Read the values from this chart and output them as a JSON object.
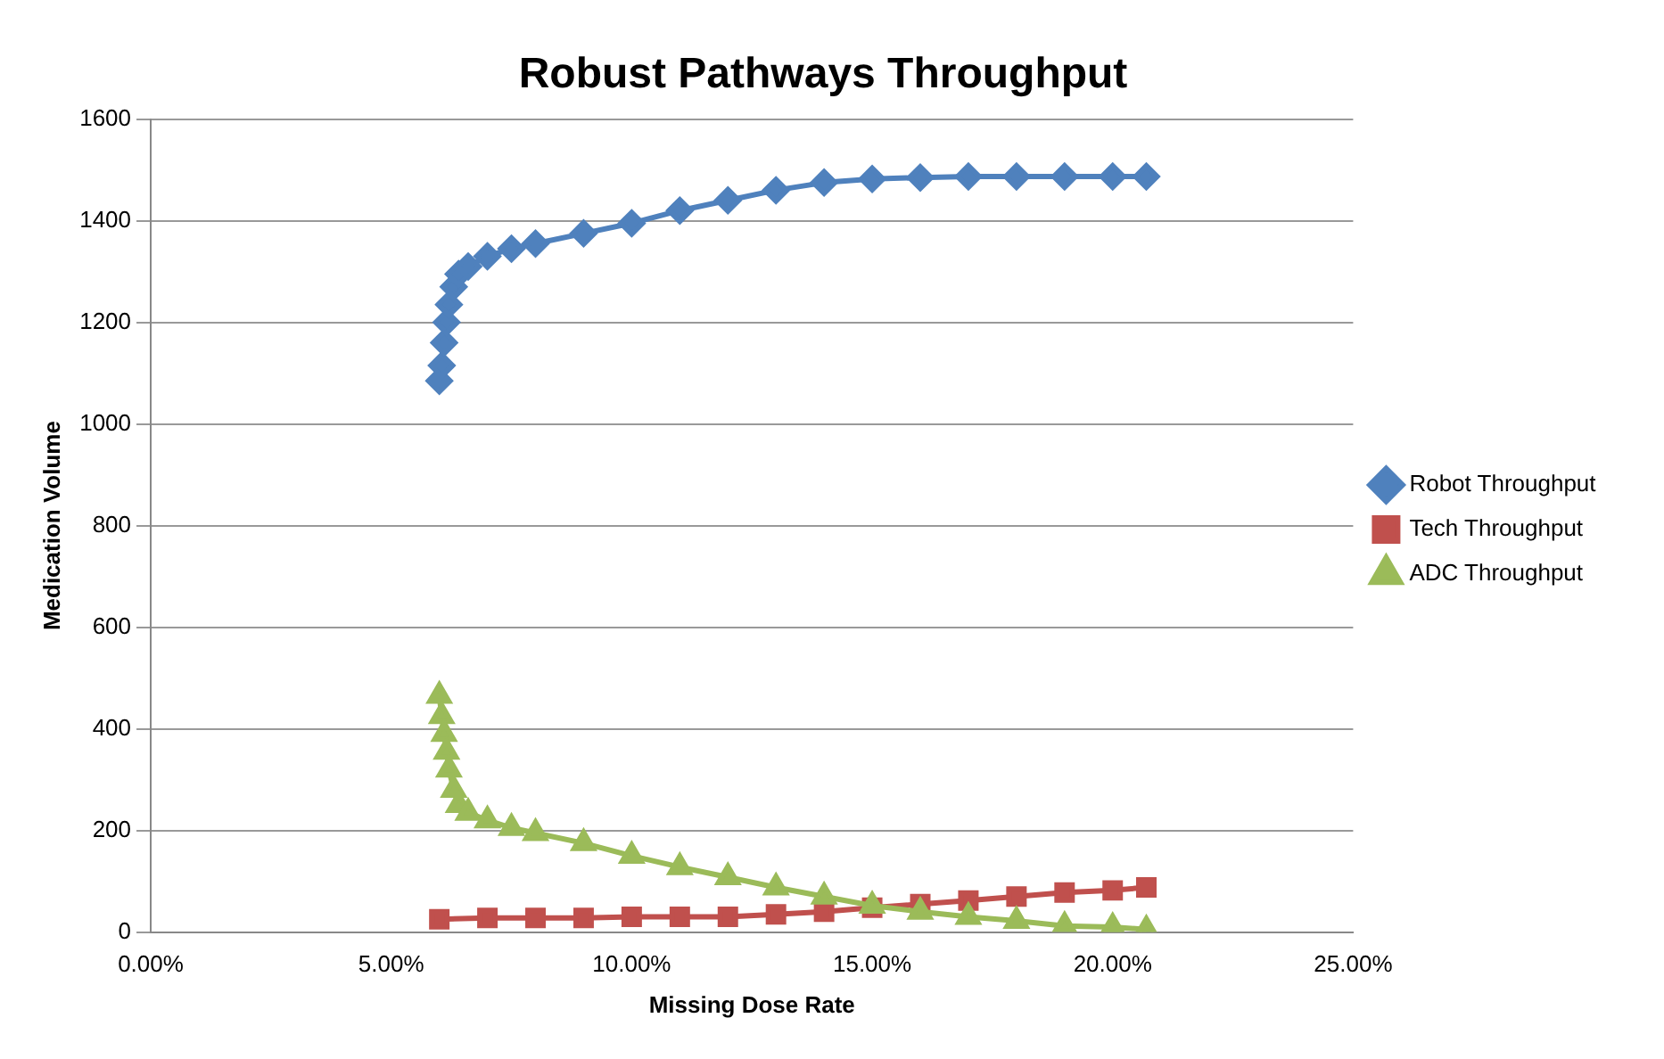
{
  "chart_data": {
    "type": "line",
    "title": "Robust Pathways Throughput",
    "xlabel": "Missing Dose Rate",
    "ylabel": "Medication Volume",
    "xlim": [
      0,
      0.25
    ],
    "xticks": [
      {
        "value": 0,
        "label": "0.00%"
      },
      {
        "value": 0.05,
        "label": "5.00%"
      },
      {
        "value": 0.1,
        "label": "10.00%"
      },
      {
        "value": 0.15,
        "label": "15.00%"
      },
      {
        "value": 0.2,
        "label": "20.00%"
      },
      {
        "value": 0.25,
        "label": "25.00%"
      }
    ],
    "ylim": [
      0,
      1600
    ],
    "yticks": [
      0,
      200,
      400,
      600,
      800,
      1000,
      1200,
      1400,
      1600
    ],
    "grid": "y",
    "legend": "right",
    "line_style": "solid",
    "series": [
      {
        "name": "Robot Throughput",
        "color": "#4f81bd",
        "marker": "diamond",
        "x": [
          0.06,
          0.0605,
          0.061,
          0.0615,
          0.062,
          0.063,
          0.064,
          0.066,
          0.07,
          0.075,
          0.08,
          0.09,
          0.1,
          0.11,
          0.12,
          0.13,
          0.14,
          0.15,
          0.16,
          0.17,
          0.18,
          0.19,
          0.2,
          0.207
        ],
        "values": [
          1085,
          1115,
          1160,
          1200,
          1235,
          1270,
          1295,
          1310,
          1330,
          1345,
          1355,
          1375,
          1395,
          1420,
          1440,
          1460,
          1475,
          1482,
          1485,
          1487,
          1487,
          1487,
          1487,
          1487
        ]
      },
      {
        "name": "Tech Throughput",
        "color": "#c0504d",
        "marker": "square",
        "x": [
          0.06,
          0.07,
          0.08,
          0.09,
          0.1,
          0.11,
          0.12,
          0.13,
          0.14,
          0.15,
          0.16,
          0.17,
          0.18,
          0.19,
          0.2,
          0.207
        ],
        "values": [
          25,
          28,
          28,
          28,
          30,
          30,
          30,
          35,
          40,
          48,
          55,
          62,
          70,
          78,
          82,
          88
        ]
      },
      {
        "name": "ADC Throughput",
        "color": "#9bbb59",
        "marker": "triangle",
        "x": [
          0.06,
          0.0605,
          0.061,
          0.0615,
          0.062,
          0.063,
          0.064,
          0.066,
          0.07,
          0.075,
          0.08,
          0.09,
          0.1,
          0.11,
          0.12,
          0.13,
          0.14,
          0.15,
          0.16,
          0.17,
          0.18,
          0.19,
          0.2,
          0.207
        ],
        "values": [
          465,
          425,
          390,
          355,
          320,
          280,
          250,
          235,
          220,
          205,
          195,
          175,
          150,
          128,
          108,
          88,
          70,
          52,
          40,
          30,
          22,
          12,
          10,
          5
        ]
      }
    ]
  }
}
